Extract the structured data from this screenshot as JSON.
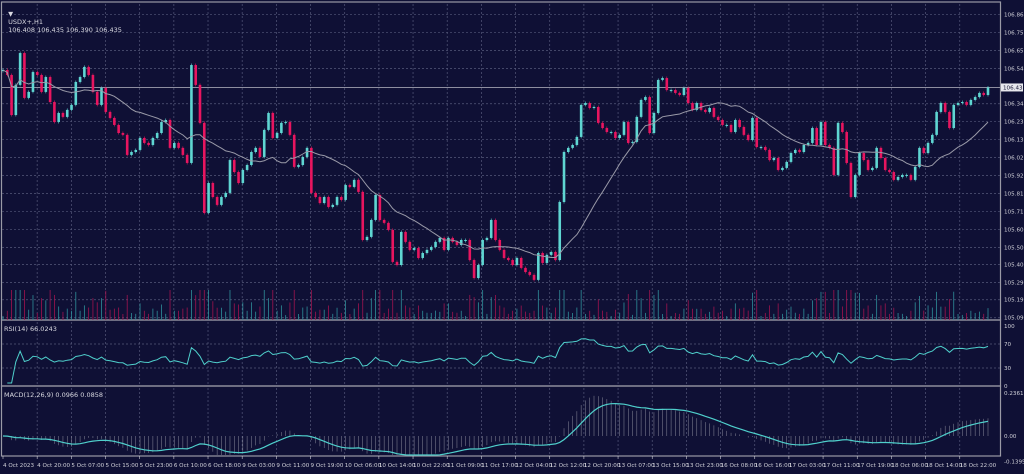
{
  "header": {
    "symbol": "USDX+,H1",
    "ohlc": "106.408 106.435 106.390 106.435"
  },
  "rsi": {
    "label": "RSI(14) 66.0243",
    "ticks": [
      "100",
      "70",
      "30",
      "0"
    ],
    "tick_values": [
      100,
      70,
      30,
      0
    ]
  },
  "macd": {
    "label": "MACD(12,26,9) 0.0966 0.0858",
    "ticks": [
      "0.2361",
      "0.00",
      "-0.1395"
    ],
    "tick_values": [
      0.2361,
      0,
      -0.1395
    ]
  },
  "colors": {
    "background": "#0f1035",
    "bull": "#5fd6d2",
    "bear": "#e8155f",
    "grid": "#55587a",
    "ma": "#9a9aa8",
    "axis_text": "#d0d0d8",
    "indicator": "#4fd0cc"
  },
  "chart_data": {
    "type": "candlestick",
    "symbol": "USDX+",
    "timeframe": "H1",
    "price_ticks": [
      "106.860",
      "106.755",
      "106.650",
      "106.545",
      "106.340",
      "106.235",
      "106.130",
      "106.025",
      "105.920",
      "105.815",
      "105.710",
      "105.605",
      "105.500",
      "105.400",
      "105.295",
      "105.195",
      "105.090"
    ],
    "price_tick_values": [
      106.86,
      106.755,
      106.65,
      106.545,
      106.34,
      106.235,
      106.13,
      106.025,
      105.92,
      105.815,
      105.71,
      105.605,
      105.5,
      105.4,
      105.295,
      105.195,
      105.09
    ],
    "current_price": "106.435",
    "ylim": [
      105.09,
      106.86
    ],
    "time_labels": [
      "4 Oct 2023",
      "4 Oct 20:00",
      "5 Oct 07:00",
      "5 Oct 15:00",
      "5 Oct 23:00",
      "6 Oct 10:00",
      "6 Oct 18:00",
      "9 Oct 03:00",
      "9 Oct 11:00",
      "9 Oct 19:00",
      "10 Oct 06:00",
      "10 Oct 14:00",
      "10 Oct 22:00",
      "11 Oct 09:00",
      "11 Oct 17:00",
      "12 Oct 04:00",
      "12 Oct 12:00",
      "12 Oct 20:00",
      "13 Oct 07:00",
      "13 Oct 15:00",
      "13 Oct 23:00",
      "16 Oct 08:00",
      "16 Oct 16:00",
      "17 Oct 03:00",
      "17 Oct 11:00",
      "17 Oct 19:00",
      "18 Oct 06:00",
      "18 Oct 14:00",
      "18 Oct 22:00"
    ],
    "grid": true,
    "moving_average_period": 20,
    "closes": [
      106.537,
      106.508,
      106.274,
      106.45,
      106.636,
      106.374,
      106.409,
      106.525,
      106.508,
      106.409,
      106.496,
      106.35,
      106.233,
      106.286,
      106.263,
      106.304,
      106.333,
      106.467,
      106.496,
      106.555,
      106.508,
      106.409,
      106.333,
      106.432,
      106.292,
      106.257,
      106.216,
      106.169,
      106.158,
      106.041,
      106.058,
      106.07,
      106.14,
      106.111,
      106.099,
      106.14,
      106.169,
      106.233,
      106.245,
      106.082,
      106.111,
      106.082,
      106.041,
      105.994,
      106.566,
      106.45,
      106.228,
      105.702,
      105.877,
      105.795,
      105.749,
      105.795,
      105.819,
      106.011,
      105.941,
      105.877,
      105.953,
      105.982,
      106.058,
      106.082,
      106.029,
      106.187,
      106.286,
      106.14,
      106.169,
      106.228,
      106.233,
      106.158,
      105.971,
      105.982,
      106.029,
      106.082,
      105.819,
      105.795,
      105.76,
      105.795,
      105.737,
      105.749,
      105.795,
      105.778,
      105.865,
      105.854,
      105.895,
      105.825,
      105.544,
      105.562,
      105.661,
      105.807,
      105.661,
      105.644,
      105.603,
      105.416,
      105.398,
      105.591,
      105.533,
      105.486,
      105.497,
      105.439,
      105.468,
      105.486,
      105.503,
      105.533,
      105.556,
      105.486,
      105.556,
      105.533,
      105.515,
      105.544,
      105.544,
      105.427,
      105.322,
      105.398,
      105.544,
      105.556,
      105.661,
      105.544,
      105.486,
      105.439,
      105.427,
      105.398,
      105.439,
      105.381,
      105.357,
      105.34,
      105.311,
      105.468,
      105.41,
      105.457,
      105.474,
      105.427,
      105.766,
      106.058,
      106.082,
      106.099,
      106.146,
      106.333,
      106.344,
      106.315,
      106.321,
      106.228,
      106.198,
      106.175,
      106.175,
      106.14,
      106.158,
      106.233,
      106.111,
      106.117,
      106.263,
      106.362,
      106.379,
      106.169,
      106.286,
      106.479,
      106.49,
      106.42,
      106.42,
      106.403,
      106.391,
      106.432,
      106.344,
      106.304,
      106.344,
      106.304,
      106.292,
      106.315,
      106.263,
      106.245,
      106.216,
      106.216,
      106.175,
      106.245,
      106.204,
      106.158,
      106.128,
      106.257,
      106.087,
      106.087,
      106.07,
      106.011,
      106.023,
      105.953,
      105.965,
      106.0,
      106.052,
      106.07,
      106.058,
      106.099,
      106.111,
      106.198,
      106.099,
      106.233,
      106.099,
      106.082,
      105.924,
      106.228,
      106.175,
      105.994,
      105.795,
      105.924,
      106.052,
      106.011,
      105.953,
      105.965,
      106.082,
      106.023,
      105.953,
      105.941,
      105.895,
      105.912,
      105.924,
      105.924,
      105.895,
      105.971,
      106.082,
      106.052,
      106.111,
      106.158,
      106.292,
      106.344,
      106.292,
      106.198,
      106.333,
      106.344,
      106.35,
      106.333,
      106.362,
      106.379,
      106.403,
      106.391,
      106.435
    ]
  }
}
